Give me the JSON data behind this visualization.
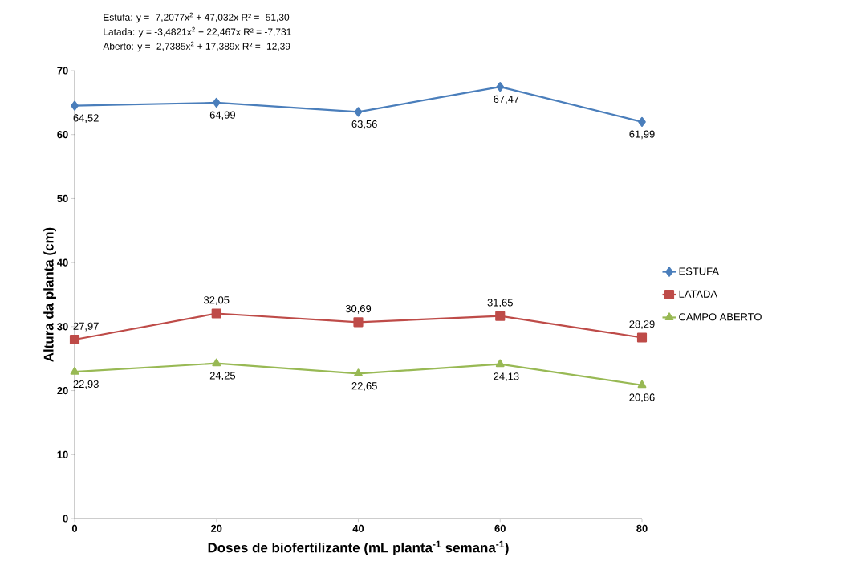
{
  "chart_data": {
    "type": "line",
    "xlabel": "Doses de biofertilizante (mL planta$^{-1}$ semana$^{-1}$)",
    "ylabel": "Altura da planta (cm)",
    "x": [
      0,
      20,
      40,
      60,
      80
    ],
    "xlim": [
      0,
      80
    ],
    "xticks": [
      0,
      20,
      40,
      60,
      80
    ],
    "ylim": [
      0,
      70
    ],
    "yticks": [
      0,
      10,
      20,
      30,
      40,
      50,
      60,
      70
    ],
    "grid": false,
    "legend": "right",
    "line_style": "solid",
    "series": [
      {
        "name": "ESTUFA",
        "color": "#4a7ebb",
        "marker": "diamond",
        "values": [
          64.52,
          64.99,
          63.56,
          67.47,
          61.99
        ],
        "value_labels": [
          "64,52",
          "64,99",
          "63,56",
          "67,47",
          "61,99"
        ]
      },
      {
        "name": "LATADA",
        "color": "#be4b48",
        "marker": "square",
        "values": [
          27.97,
          32.05,
          30.69,
          31.65,
          28.29
        ],
        "value_labels": [
          "27,97",
          "32,05",
          "30,69",
          "31,65",
          "28,29"
        ]
      },
      {
        "name": "CAMPO ABERTO",
        "color": "#98b954",
        "marker": "triangle",
        "values": [
          22.93,
          24.25,
          22.65,
          24.13,
          20.86
        ],
        "value_labels": [
          "22,93",
          "24,25",
          "22,65",
          "24,13",
          "20,86"
        ]
      }
    ],
    "annotations": [
      "Estufa:   y = -7,2077x$^{2}$  + 47,032x   R² = -51,30",
      "Latada:  y = -3,4821x$^{2}$  + 22,467x   R² = -7,731",
      "Aberto:  y =  -2,7385x$^{2}$  + 17,389x  R²  = -12,39"
    ]
  }
}
